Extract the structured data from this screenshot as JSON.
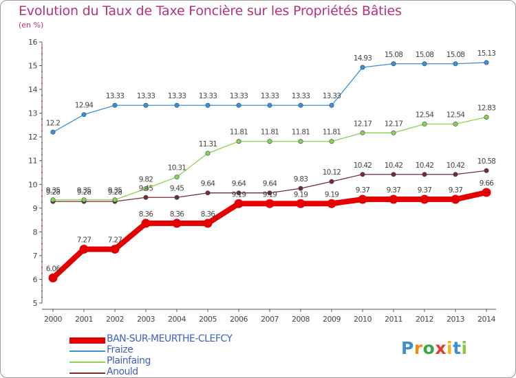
{
  "title": "Evolution du Taux de Taxe Foncière sur les Propriétés Bâties",
  "unit_label": "(en %)",
  "logo": {
    "letters": [
      {
        "ch": "P",
        "color": "#3a8fd6"
      },
      {
        "ch": "r",
        "color": "#f08a1c"
      },
      {
        "ch": "o",
        "color": "#39a845"
      },
      {
        "ch": "x",
        "color": "#e23a2d"
      },
      {
        "ch": "i",
        "color": "#f2b61c"
      },
      {
        "ch": "t",
        "color": "#3a8fd6"
      },
      {
        "ch": "i",
        "color": "#8bc53f"
      }
    ]
  },
  "chart_data": {
    "type": "line",
    "title": "Evolution du Taux de Taxe Foncière sur les Propriétés Bâties",
    "ylabel": "(en %)",
    "xlabel": "",
    "ylim": [
      5,
      16
    ],
    "yticks": [
      5,
      6,
      7,
      8,
      9,
      10,
      11,
      12,
      13,
      14,
      15,
      16
    ],
    "x": [
      "2000",
      "2001",
      "2002",
      "2003",
      "2004",
      "2005",
      "2006",
      "2007",
      "2008",
      "2009",
      "2010",
      "2011",
      "2012",
      "2013",
      "2014"
    ],
    "grid": false,
    "series": [
      {
        "name": "BAN-SUR-MEURTHE-CLEFCY",
        "color": "#e40000",
        "values": [
          6.06,
          7.27,
          7.27,
          8.36,
          8.36,
          8.36,
          9.19,
          9.19,
          9.19,
          9.19,
          9.37,
          9.37,
          9.37,
          9.37,
          9.66
        ],
        "labels": [
          "6.06",
          "7.27",
          "7.27",
          "8.36",
          "8.36",
          "8.36",
          "9.19",
          "9.19",
          "9.19",
          "9.19",
          "9.37",
          "9.37",
          "9.37",
          "9.37",
          "9.66"
        ]
      },
      {
        "name": "Fraize",
        "color": "#3f8fd2",
        "values": [
          12.2,
          12.94,
          13.33,
          13.33,
          13.33,
          13.33,
          13.33,
          13.33,
          13.33,
          13.33,
          14.93,
          15.08,
          15.08,
          15.08,
          15.13
        ],
        "labels": [
          "12.2",
          "12.94",
          "13.33",
          "13.33",
          "13.33",
          "13.33",
          "13.33",
          "13.33",
          "13.33",
          "13.33",
          "14.93",
          "15.08",
          "15.08",
          "15.08",
          "15.13"
        ]
      },
      {
        "name": "Plainfaing",
        "color": "#8fd14f",
        "values": [
          9.35,
          9.35,
          9.35,
          9.82,
          10.31,
          11.31,
          11.81,
          11.81,
          11.81,
          11.81,
          12.17,
          12.17,
          12.54,
          12.54,
          12.83
        ],
        "labels": [
          "9.35",
          "9.35",
          "9.35",
          "9.82",
          "10.31",
          "11.31",
          "11.81",
          "11.81",
          "11.81",
          "11.81",
          "12.17",
          "12.17",
          "12.54",
          "12.54",
          "12.83"
        ]
      },
      {
        "name": "Anould",
        "color": "#7a2a2a",
        "values": [
          9.28,
          9.28,
          9.28,
          9.45,
          9.45,
          9.64,
          9.64,
          9.64,
          9.83,
          10.12,
          10.42,
          10.42,
          10.42,
          10.42,
          10.58
        ],
        "labels": [
          "9.28",
          "9.28",
          "9.28",
          "9.45",
          "9.45",
          "9.64",
          "9.64",
          "9.64",
          "9.83",
          "10.12",
          "10.42",
          "10.42",
          "10.42",
          "10.42",
          "10.58"
        ]
      }
    ],
    "legend_position": "bottom-left"
  }
}
